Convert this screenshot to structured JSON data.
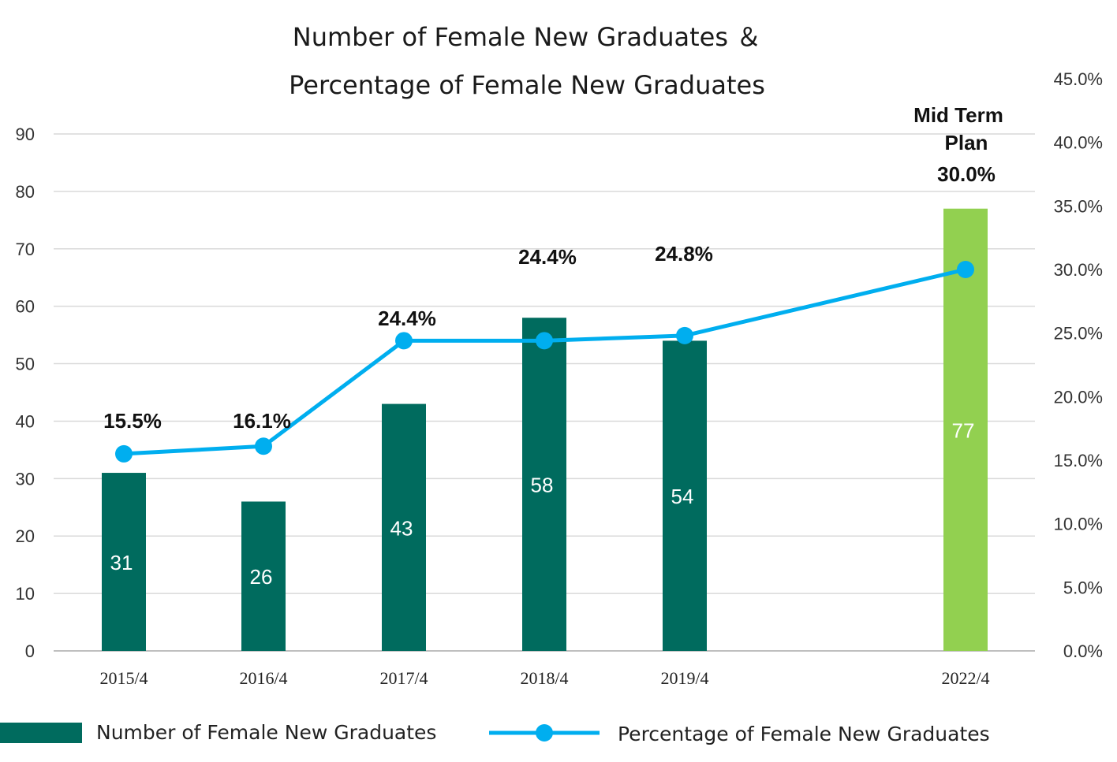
{
  "chart_data": {
    "type": "bar",
    "title_lines": [
      "Number of Female New Graduates ＆",
      "Percentage of Female New Graduates"
    ],
    "categories": [
      "2015/4",
      "2016/4",
      "2017/4",
      "2018/4",
      "2019/4",
      "2022/4"
    ],
    "series": [
      {
        "name": "Number of Female New Graduates",
        "type": "bar",
        "axis": "left",
        "values": [
          31,
          26,
          43,
          58,
          54,
          77
        ],
        "value_labels": [
          "31",
          "26",
          "43",
          "58",
          "54",
          "77"
        ],
        "colors": [
          "#006b5e",
          "#006b5e",
          "#006b5e",
          "#006b5e",
          "#006b5e",
          "#92d050"
        ]
      },
      {
        "name": "Percentage of Female New Graduates",
        "type": "line",
        "axis": "right",
        "values": [
          15.5,
          16.1,
          24.4,
          24.4,
          24.8,
          30.0
        ],
        "value_labels": [
          "15.5%",
          "16.1%",
          "24.4%",
          "24.4%",
          "24.8%",
          "30.0%"
        ],
        "color": "#00aeef"
      }
    ],
    "annotation": [
      "Mid Term",
      "Plan"
    ],
    "y_left": {
      "ylim": [
        0,
        90
      ],
      "ticks": [
        "0",
        "10",
        "20",
        "30",
        "40",
        "50",
        "60",
        "70",
        "80",
        "90"
      ]
    },
    "y_right": {
      "ylim": [
        0,
        45
      ],
      "ticks": [
        "0.0%",
        "5.0%",
        "10.0%",
        "15.0%",
        "20.0%",
        "25.0%",
        "30.0%",
        "35.0%",
        "40.0%",
        "45.0%"
      ]
    },
    "grid": true,
    "legend_position": "bottom"
  }
}
